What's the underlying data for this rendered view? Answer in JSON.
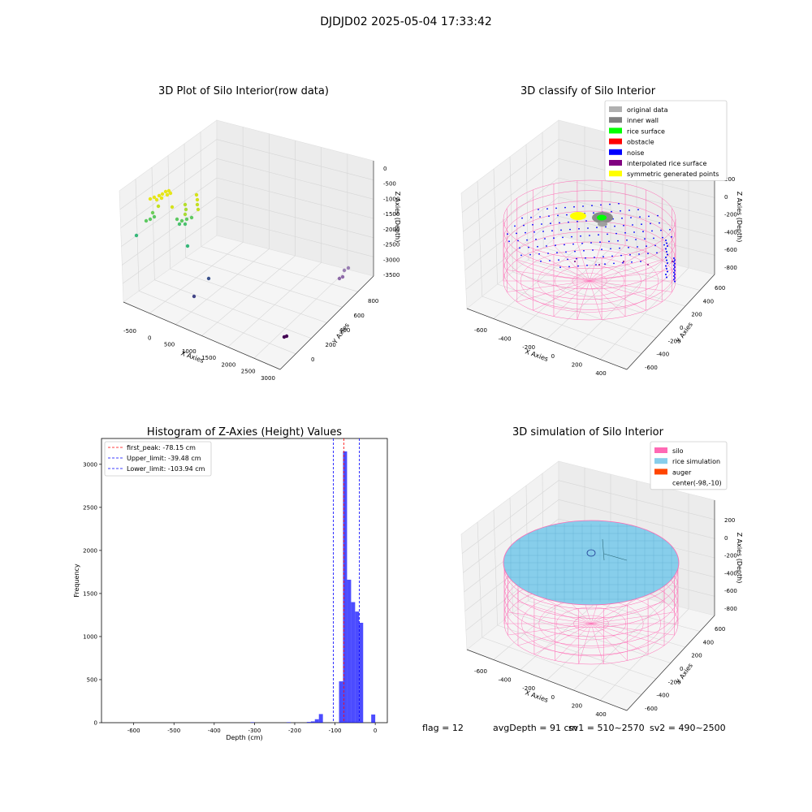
{
  "figure": {
    "suptitle": "DJDJD02 2025-05-04 17:33:42",
    "footer": {
      "flag": "flag = 12",
      "avg_depth": "avgDepth = 91 cm",
      "sv1": "sv1 = 510~2570",
      "sv2": "sv2 = 490~2500"
    }
  },
  "chart_data": [
    {
      "type": "scatter3d",
      "title": "3D Plot of Silo Interior(row data)",
      "xlabel": "X Axies",
      "ylabel": "Y Axies",
      "zlabel": "Z Axies (Depth)",
      "xticks": [
        "-500",
        "0",
        "500",
        "1000",
        "1500",
        "2000",
        "2500",
        "3000"
      ],
      "yticks": [
        "0",
        "200",
        "400",
        "600",
        "800"
      ],
      "zticks": [
        "0",
        "-500",
        "-1000",
        "-1500",
        "-2000",
        "-2500",
        "-3000",
        "-3500"
      ],
      "xlim": [
        -600,
        3100
      ],
      "ylim": [
        -100,
        900
      ],
      "zlim": [
        -3700,
        100
      ],
      "grid": true
    },
    {
      "type": "scatter3d",
      "title": "3D classify of Silo Interior",
      "xlabel": "X Axies",
      "ylabel": "Y Axies",
      "zlabel": "Z Axies (Depth)",
      "xticks": [
        "-600",
        "-400",
        "-200",
        "0",
        "200",
        "400"
      ],
      "yticks": [
        "-600",
        "-400",
        "-200",
        "0",
        "200",
        "400",
        "600"
      ],
      "zticks": [
        "200",
        "0",
        "-200",
        "-400",
        "-600",
        "-800"
      ],
      "xlim": [
        -700,
        500
      ],
      "ylim": [
        -650,
        650
      ],
      "zlim": [
        -900,
        250
      ],
      "grid": true,
      "legend": {
        "placement": "top-right",
        "entries": [
          {
            "label": "original data",
            "color": "#b0b0b0"
          },
          {
            "label": "inner wall",
            "color": "#808080"
          },
          {
            "label": "rice surface",
            "color": "#00ff00"
          },
          {
            "label": "obstacle",
            "color": "#ff0000"
          },
          {
            "label": "noise",
            "color": "#0000ff"
          },
          {
            "label": "interpolated rice surface",
            "color": "#800080"
          },
          {
            "label": "symmetric generated points",
            "color": "#ffff00"
          }
        ]
      }
    },
    {
      "type": "bar",
      "title": "Histogram of Z-Axies (Height) Values",
      "xlabel": "Depth (cm)",
      "ylabel": "Frequency",
      "xlim": [
        -680,
        30
      ],
      "ylim": [
        0,
        3300
      ],
      "xticks": [
        -600,
        -500,
        -400,
        -300,
        -200,
        -100,
        0
      ],
      "yticks": [
        0,
        500,
        1000,
        1500,
        2000,
        2500,
        3000
      ],
      "bar_color": "#0000ff",
      "bins": [
        {
          "left": -310,
          "right": -300,
          "count": 5
        },
        {
          "left": -220,
          "right": -210,
          "count": 5
        },
        {
          "left": -170,
          "right": -160,
          "count": 8
        },
        {
          "left": -160,
          "right": -150,
          "count": 15
        },
        {
          "left": -150,
          "right": -140,
          "count": 40
        },
        {
          "left": -140,
          "right": -130,
          "count": 100
        },
        {
          "left": -90,
          "right": -80,
          "count": 480
        },
        {
          "left": -80,
          "right": -70,
          "count": 3150
        },
        {
          "left": -70,
          "right": -60,
          "count": 1660
        },
        {
          "left": -60,
          "right": -50,
          "count": 1400
        },
        {
          "left": -50,
          "right": -40,
          "count": 1290
        },
        {
          "left": -40,
          "right": -30,
          "count": 1160
        },
        {
          "left": -10,
          "right": 0,
          "count": 95
        }
      ],
      "lines": [
        {
          "label": "first_peak: -78.15 cm",
          "x": -78.15,
          "color": "#ff0000"
        },
        {
          "label": "Upper_limit: -39.48 cm",
          "x": -39.48,
          "color": "#0000ff"
        },
        {
          "label": "Lower_limit: -103.94 cm",
          "x": -103.94,
          "color": "#0000ff"
        }
      ],
      "legend": {
        "placement": "top-left"
      }
    },
    {
      "type": "surface3d",
      "title": "3D simulation of Silo Interior",
      "xlabel": "X Axies",
      "ylabel": "Y Axies",
      "zlabel": "Z Axies (Depth)",
      "xticks": [
        "-600",
        "-400",
        "-200",
        "0",
        "200",
        "400"
      ],
      "yticks": [
        "-600",
        "-400",
        "-200",
        "0",
        "200",
        "400",
        "600"
      ],
      "zticks": [
        "200",
        "0",
        "-200",
        "-400",
        "-600",
        "-800"
      ],
      "grid": true,
      "legend": {
        "placement": "top-right",
        "entries": [
          {
            "label": "silo",
            "color": "#ff69b4"
          },
          {
            "label": "rice simulation",
            "color": "#87ceeb"
          },
          {
            "label": "auger",
            "color": "#ff4500"
          },
          {
            "label": "center(-98,-10)",
            "color": ""
          }
        ]
      }
    }
  ]
}
